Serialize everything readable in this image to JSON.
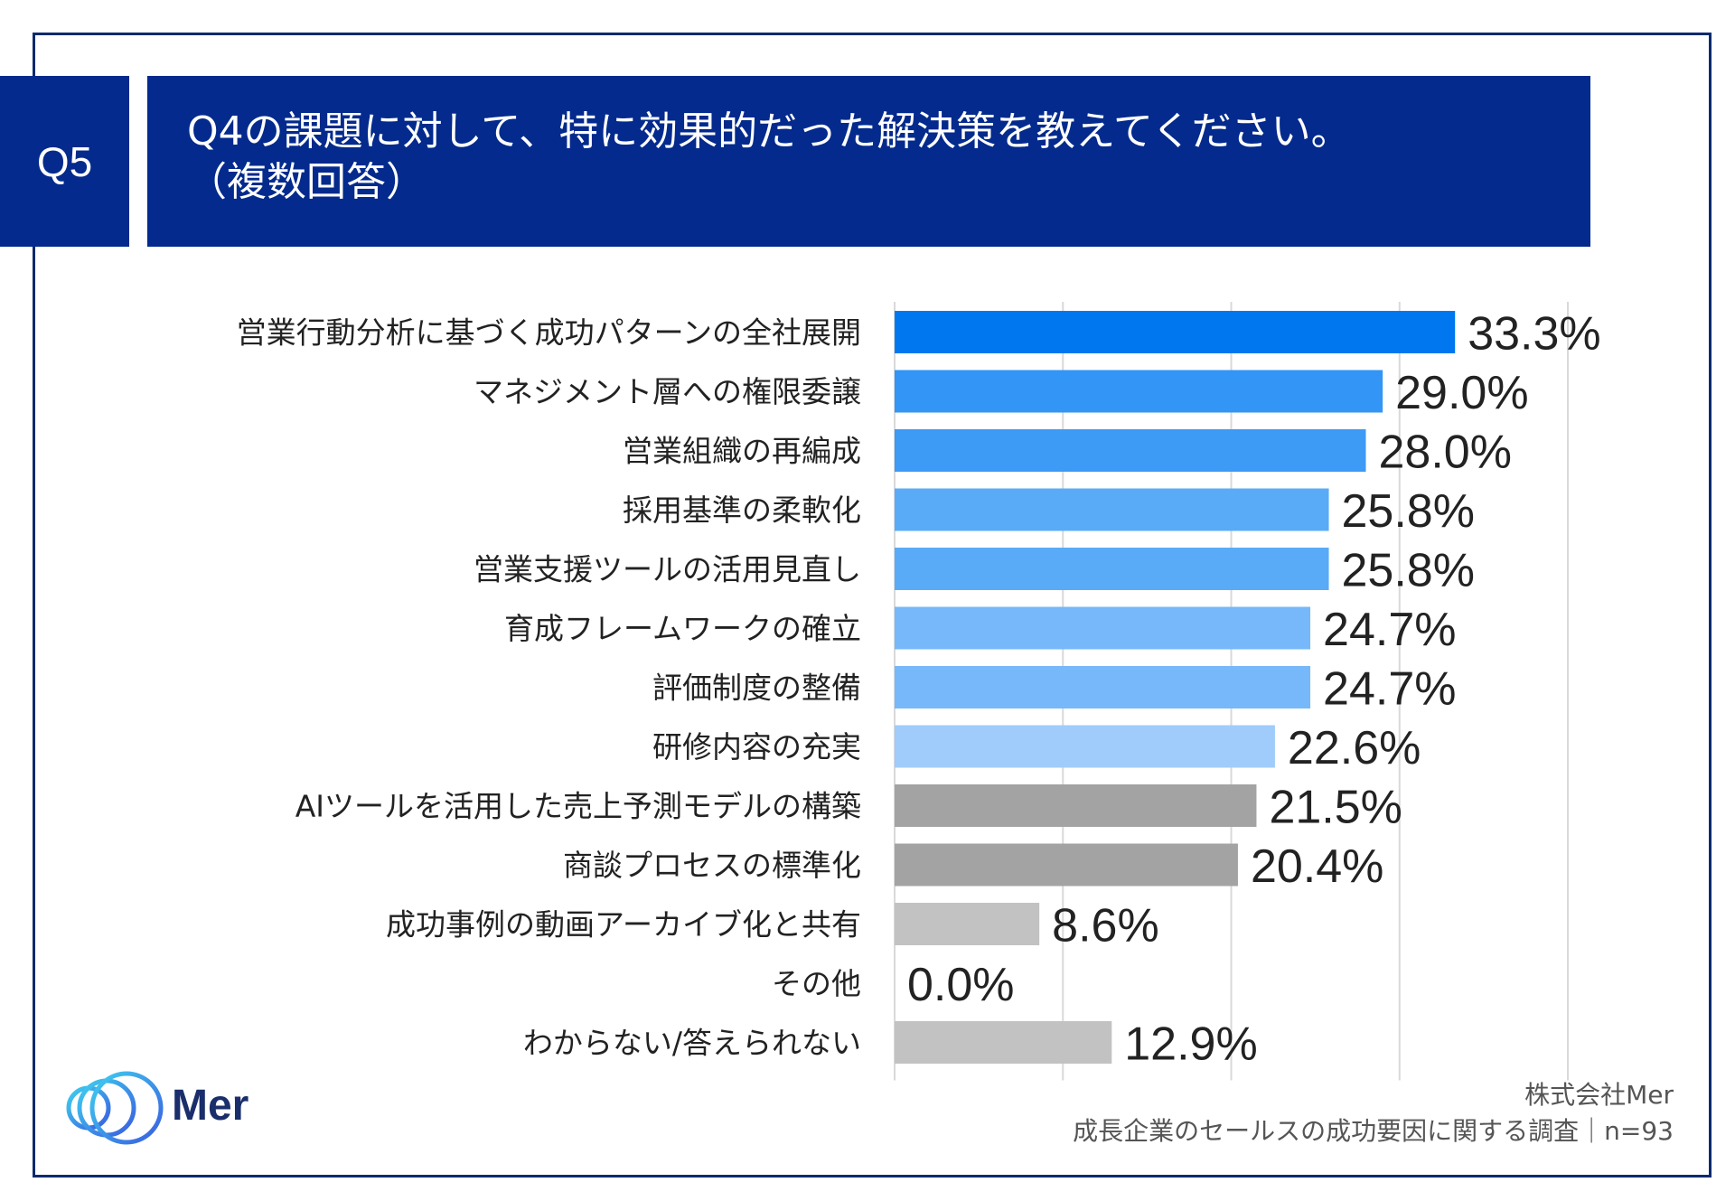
{
  "question": {
    "badge": "Q5",
    "title_line1": "Q4の課題に対して、特に効果的だった解決策を教えてください。",
    "title_line2": "（複数回答）"
  },
  "chart_data": {
    "type": "bar",
    "orientation": "horizontal",
    "categories": [
      "営業行動分析に基づく成功パターンの全社展開",
      "マネジメント層への権限委譲",
      "営業組織の再編成",
      "採用基準の柔軟化",
      "営業支援ツールの活用見直し",
      "育成フレームワークの確立",
      "評価制度の整備",
      "研修内容の充実",
      "AIツールを活用した売上予測モデルの構築",
      "商談プロセスの標準化",
      "成功事例の動画アーカイブ化と共有",
      "その他",
      "わからない/答えられない"
    ],
    "values": [
      33.3,
      29.0,
      28.0,
      25.8,
      25.8,
      24.7,
      24.7,
      22.6,
      21.5,
      20.4,
      8.6,
      0.0,
      12.9
    ],
    "value_labels": [
      "33.3%",
      "29.0%",
      "28.0%",
      "25.8%",
      "25.8%",
      "24.7%",
      "24.7%",
      "22.6%",
      "21.5%",
      "20.4%",
      "8.6%",
      "0.0%",
      "12.9%"
    ],
    "colors": [
      "#0077ee",
      "#3395f5",
      "#3d9af5",
      "#5aabf7",
      "#5aabf7",
      "#76b8f9",
      "#76b8f9",
      "#9fccfb",
      "#a3a3a3",
      "#a3a3a3",
      "#c2c2c2",
      "#c2c2c2",
      "#c2c2c2"
    ],
    "xlim": [
      0,
      40
    ],
    "gridlines": [
      10,
      20,
      30,
      40
    ],
    "grid": true,
    "xlabel": "",
    "ylabel": ""
  },
  "brand": {
    "name": "Mer"
  },
  "source": {
    "company": "株式会社Mer",
    "survey": "成長企業のセールスの成功要因に関する調査｜n=93"
  }
}
